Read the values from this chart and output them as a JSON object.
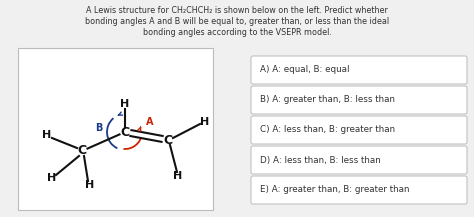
{
  "title_line1": "A Lewis structure for CH₂CHCH₂ is shown below on the left. Predict whether",
  "title_line2": "bonding angles A and B will be equal to, greater than, or less than the ideal",
  "title_line3": "bonding angles according to the VSEPR model.",
  "options": [
    "A) A: equal, B: equal",
    "B) A: greater than, B: less than",
    "C) A: less than, B: greater than",
    "D) A: less than, B: less than",
    "E) A: greater than, B: greater than"
  ],
  "bg_color": "#f0f0f0",
  "box_color": "#ffffff",
  "box_edge_color": "#bbbbbb",
  "text_color": "#333333",
  "atom_color": "#111111",
  "blue_arrow_color": "#1a3a8a",
  "red_arrow_color": "#cc2200",
  "opt_bg": "#ffffff",
  "opt_edge": "#bbbbbb"
}
